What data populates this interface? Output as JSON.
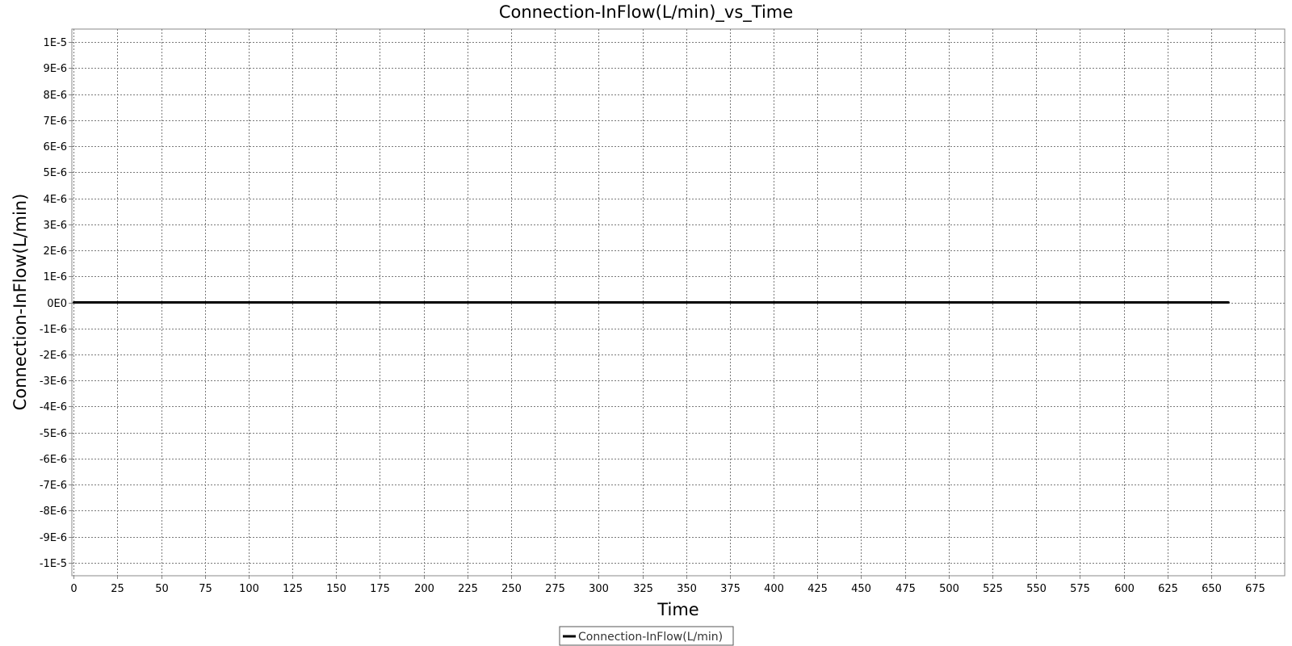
{
  "chart_data": {
    "type": "line",
    "title": "Connection-InFlow(L/min)_vs_Time",
    "xlabel": "Time",
    "ylabel": "Connection-InFlow(L/min)",
    "xlim": [
      -1,
      692
    ],
    "ylim": [
      -1.05e-05,
      1.05e-05
    ],
    "x_ticks": [
      0,
      25,
      50,
      75,
      100,
      125,
      150,
      175,
      200,
      225,
      250,
      275,
      300,
      325,
      350,
      375,
      400,
      425,
      450,
      475,
      500,
      525,
      550,
      575,
      600,
      625,
      650,
      675
    ],
    "y_ticks": [
      {
        "value": 1e-05,
        "label": "1E-5"
      },
      {
        "value": 9e-06,
        "label": "9E-6"
      },
      {
        "value": 8e-06,
        "label": "8E-6"
      },
      {
        "value": 7e-06,
        "label": "7E-6"
      },
      {
        "value": 6e-06,
        "label": "6E-6"
      },
      {
        "value": 5e-06,
        "label": "5E-6"
      },
      {
        "value": 4e-06,
        "label": "4E-6"
      },
      {
        "value": 3e-06,
        "label": "3E-6"
      },
      {
        "value": 2e-06,
        "label": "2E-6"
      },
      {
        "value": 1e-06,
        "label": "1E-6"
      },
      {
        "value": 0,
        "label": "0E0"
      },
      {
        "value": -1e-06,
        "label": "-1E-6"
      },
      {
        "value": -2e-06,
        "label": "-2E-6"
      },
      {
        "value": -3e-06,
        "label": "-3E-6"
      },
      {
        "value": -4e-06,
        "label": "-4E-6"
      },
      {
        "value": -5e-06,
        "label": "-5E-6"
      },
      {
        "value": -6e-06,
        "label": "-6E-6"
      },
      {
        "value": -7e-06,
        "label": "-7E-6"
      },
      {
        "value": -8e-06,
        "label": "-8E-6"
      },
      {
        "value": -9e-06,
        "label": "-9E-6"
      },
      {
        "value": -1e-05,
        "label": "-1E-5"
      }
    ],
    "grid": true,
    "legend_position": "bottom-center",
    "series": [
      {
        "name": "Connection-InFlow(L/min)",
        "color": "#000000",
        "x": [
          0,
          660
        ],
        "y": [
          0,
          0
        ]
      }
    ]
  }
}
